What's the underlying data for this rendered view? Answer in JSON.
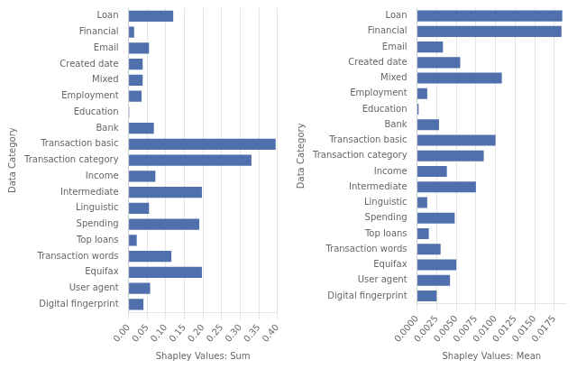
{
  "chart_data": [
    {
      "type": "bar",
      "orientation": "horizontal",
      "categories": [
        "Digital fingerprint",
        "User agent",
        "Equifax",
        "Transaction words",
        "Top loans",
        "Spending",
        "Linguistic",
        "Intermediate",
        "Income",
        "Transaction category",
        "Transaction basic",
        "Bank",
        "Education",
        "Employment",
        "Mixed",
        "Created date",
        "Email",
        "Financial",
        "Loan"
      ],
      "values": [
        0.04,
        0.058,
        0.197,
        0.115,
        0.022,
        0.19,
        0.055,
        0.197,
        0.072,
        0.33,
        0.395,
        0.068,
        0.002,
        0.035,
        0.038,
        0.038,
        0.055,
        0.015,
        0.12
      ],
      "color": "#4f6fad",
      "xlabel": "Shapley Values: Sum",
      "ylabel": "Data Category",
      "xlim": [
        0.0,
        0.4
      ],
      "xticks": [
        {
          "value": 0.0,
          "label": "0.00"
        },
        0.05,
        {
          "value": 0.1,
          "label": "0.10"
        },
        0.15,
        {
          "value": 0.2,
          "label": "0.20"
        },
        0.25,
        {
          "value": 0.3,
          "label": "0.30"
        },
        0.35,
        {
          "value": 0.4,
          "label": "0.40"
        }
      ],
      "grid": true
    },
    {
      "type": "bar",
      "orientation": "horizontal",
      "categories": [
        "Digital fingerprint",
        "User agent",
        "Equifax",
        "Transaction words",
        "Top loans",
        "Spending",
        "Linguistic",
        "Intermediate",
        "Income",
        "Transaction category",
        "Transaction basic",
        "Bank",
        "Education",
        "Employment",
        "Mixed",
        "Created date",
        "Email",
        "Financial",
        "Loan"
      ],
      "values": [
        0.0025,
        0.0042,
        0.005,
        0.003,
        0.0015,
        0.0048,
        0.0013,
        0.0075,
        0.0038,
        0.0085,
        0.01,
        0.0028,
        0.0002,
        0.0013,
        0.0108,
        0.0055,
        0.0033,
        0.0184,
        0.0185
      ],
      "color": "#4f6fad",
      "xlabel": "Shapley Values: Mean",
      "ylabel": "Data Category",
      "xlim": [
        0.0,
        0.019
      ],
      "xticks": [
        {
          "value": 0.0,
          "label": "0.0000"
        },
        0.0025,
        {
          "value": 0.005,
          "label": "0.0050"
        },
        0.0075,
        {
          "value": 0.01,
          "label": "0.0100"
        },
        0.0125,
        {
          "value": 0.015,
          "label": "0.0150"
        },
        0.0175
      ],
      "grid": true
    }
  ]
}
